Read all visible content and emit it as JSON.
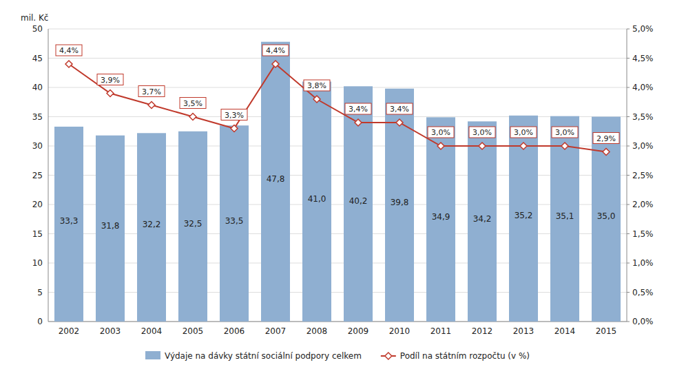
{
  "chart_data": {
    "type": "bar",
    "ylabel": "mil. Kč",
    "categories": [
      "2002",
      "2003",
      "2004",
      "2005",
      "2006",
      "2007",
      "2008",
      "2009",
      "2010",
      "2011",
      "2012",
      "2013",
      "2014",
      "2015"
    ],
    "series": [
      {
        "name": "Výdaje na dávky státní sociální podpory celkem",
        "type": "bar",
        "color": "#8fafd1",
        "values": [
          33.3,
          31.8,
          32.2,
          32.5,
          33.5,
          47.8,
          41.0,
          40.2,
          39.8,
          34.9,
          34.2,
          35.2,
          35.1,
          35.0
        ],
        "value_labels": [
          "33,3",
          "31,8",
          "32,2",
          "32,5",
          "33,5",
          "47,8",
          "41,0",
          "40,2",
          "39,8",
          "34,9",
          "34,2",
          "35,2",
          "35,1",
          "35,0"
        ]
      },
      {
        "name": "Podíl na státním rozpočtu (v %)",
        "type": "line",
        "axis": "y2",
        "color": "#c0392b",
        "marker": "diamond",
        "line_style": "solid",
        "values": [
          4.4,
          3.9,
          3.7,
          3.5,
          3.3,
          4.4,
          3.8,
          3.4,
          3.4,
          3.0,
          3.0,
          3.0,
          3.0,
          2.9
        ],
        "value_labels": [
          "4,4%",
          "3,9%",
          "3,7%",
          "3,5%",
          "3,3%",
          "4,4%",
          "3,8%",
          "3,4%",
          "3,4%",
          "3,0%",
          "3,0%",
          "3,0%",
          "3,0%",
          "2,9%"
        ]
      }
    ],
    "ylim": [
      0,
      50
    ],
    "yticks": [
      0,
      5,
      10,
      15,
      20,
      25,
      30,
      35,
      40,
      45,
      50
    ],
    "y2lim": [
      0.0,
      5.0
    ],
    "y2ticks": [
      {
        "value": 0.0,
        "label": "0,0%"
      },
      {
        "value": 0.5,
        "label": "0,5%"
      },
      {
        "value": 1.0,
        "label": "1,0%"
      },
      {
        "value": 1.5,
        "label": "1,5%"
      },
      {
        "value": 2.0,
        "label": "2,0%"
      },
      {
        "value": 2.5,
        "label": "2,5%"
      },
      {
        "value": 3.0,
        "label": "3,0%"
      },
      {
        "value": 3.5,
        "label": "3,5%"
      },
      {
        "value": 4.0,
        "label": "4,0%"
      },
      {
        "value": 4.5,
        "label": "4,5%"
      },
      {
        "value": 5.0,
        "label": "5,0%"
      }
    ],
    "grid": true,
    "data_labels": true,
    "legend": "bottom"
  }
}
